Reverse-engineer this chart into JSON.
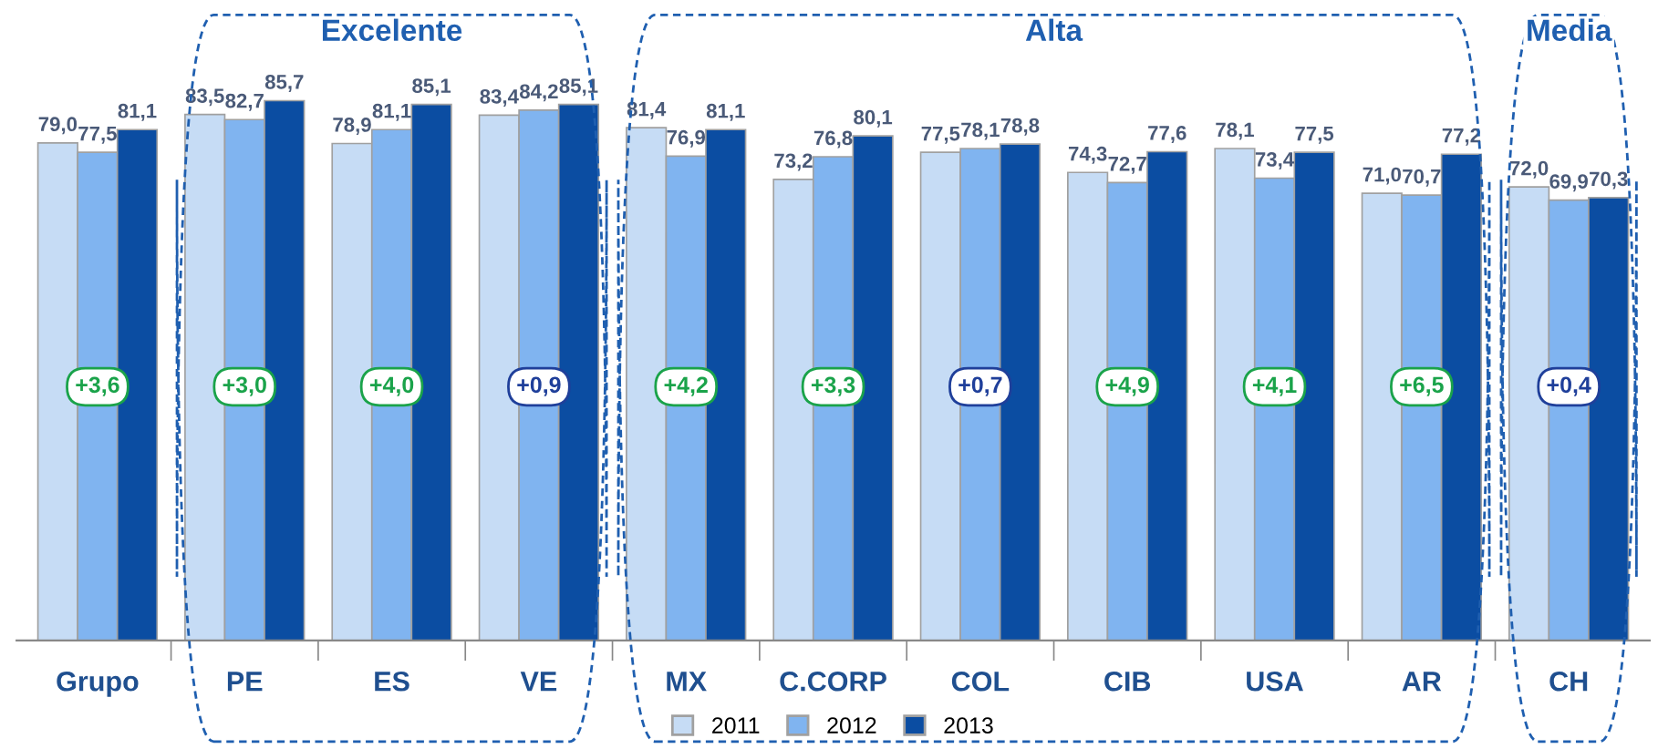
{
  "chart_data": {
    "type": "bar",
    "categories": [
      "Grupo",
      "PE",
      "ES",
      "VE",
      "MX",
      "C.CORP",
      "COL",
      "CIB",
      "USA",
      "AR",
      "CH"
    ],
    "series": [
      {
        "name": "2011",
        "color": "#c6dcf5",
        "values": [
          79.0,
          83.5,
          78.9,
          83.4,
          81.4,
          73.2,
          77.5,
          74.3,
          78.1,
          71.0,
          72.0
        ],
        "value_labels": [
          "79,0",
          "83,5",
          "78,9",
          "83,4",
          "81,4",
          "73,2",
          "77,5",
          "74,3",
          "78,1",
          "71,0",
          "72,0"
        ]
      },
      {
        "name": "2012",
        "color": "#80b4f0",
        "values": [
          77.5,
          82.7,
          81.1,
          84.2,
          76.9,
          76.8,
          78.1,
          72.7,
          73.4,
          70.7,
          69.9
        ],
        "value_labels": [
          "77,5",
          "82,7",
          "81,1",
          "84,2",
          "76,9",
          "76,8",
          "78,1",
          "72,7",
          "73,4",
          "70,7",
          "69,9"
        ]
      },
      {
        "name": "2013",
        "color": "#0b4da2",
        "values": [
          81.1,
          85.7,
          85.1,
          85.1,
          81.1,
          80.1,
          78.8,
          77.6,
          77.5,
          77.2,
          70.3
        ],
        "value_labels": [
          "81,1",
          "85,7",
          "85,1",
          "85,1",
          "81,1",
          "80,1",
          "78,8",
          "77,6",
          "77,5",
          "77,2",
          "70,3"
        ]
      }
    ],
    "tick_labels": "x",
    "legend": "bottom",
    "grid": false,
    "annotations": [
      "Excelente",
      "Alta",
      "Media",
      "+3,6",
      "+3,0",
      "+4,0",
      "+0,9",
      "+4,2",
      "+3,3",
      "+0,7",
      "+4,9",
      "+4,1",
      "+6,5",
      "+0,4"
    ]
  }
}
